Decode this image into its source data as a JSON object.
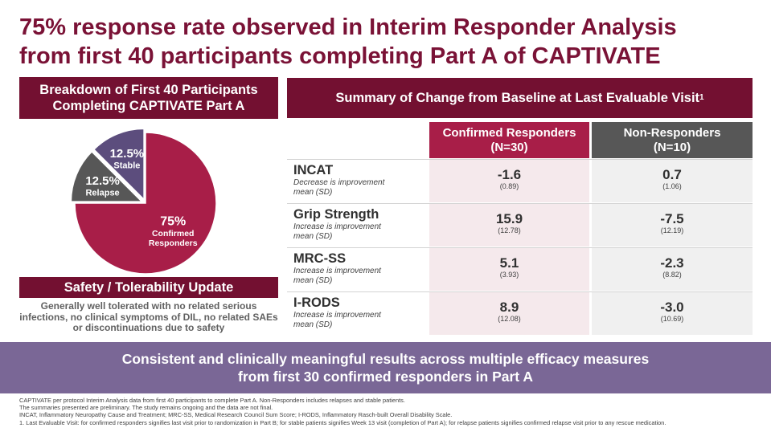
{
  "title": {
    "line1": "75% response rate observed in Interim Responder Analysis",
    "line2": "from first 40 participants completing Part A of CAPTIVATE"
  },
  "breakdown": {
    "header_line1": "Breakdown of First 40 Participants",
    "header_line2": "Completing CAPTIVATE Part A"
  },
  "safety": {
    "header": "Safety / Tolerability Update",
    "text": "Generally well tolerated with no related serious infections, no clinical symptoms of DIL, no related SAEs or discontinuations due to safety"
  },
  "summary": {
    "header": "Summary of Change from Baseline at Last Evaluable Visit",
    "header_sup": "1"
  },
  "colors": {
    "title": "#7a1236",
    "header_bg": "#731031",
    "confirmed": "#a81e48",
    "relapse": "#575757",
    "stable": "#5c4d7d",
    "banner": "#7a6796"
  },
  "chart_data": [
    {
      "type": "pie",
      "slices": [
        {
          "label_pct": "75%",
          "label_line1": "Confirmed",
          "label_line2": "Responders",
          "value": 75,
          "color": "#a81e48"
        },
        {
          "label_pct": "12.5%",
          "label_line1": "Relapse",
          "label_line2": "",
          "value": 12.5,
          "color": "#575757"
        },
        {
          "label_pct": "12.5%",
          "label_line1": "Stable",
          "label_line2": "",
          "value": 12.5,
          "color": "#5c4d7d"
        }
      ]
    },
    {
      "type": "table",
      "columns": [
        {
          "line1": "Confirmed Responders",
          "line2": "(N=30)"
        },
        {
          "line1": "Non-Responders",
          "line2": "(N=10)"
        }
      ],
      "rows": [
        {
          "metric": "INCAT",
          "desc1": "Decrease is improvement",
          "desc2": "mean (SD)",
          "responders_mean": "-1.6",
          "responders_sd": "(0.89)",
          "non_mean": "0.7",
          "non_sd": "(1.06)"
        },
        {
          "metric": "Grip Strength",
          "desc1": "Increase is improvement",
          "desc2": "mean (SD)",
          "responders_mean": "15.9",
          "responders_sd": "(12.78)",
          "non_mean": "-7.5",
          "non_sd": "(12.19)"
        },
        {
          "metric": "MRC-SS",
          "desc1": "Increase is improvement",
          "desc2": "mean (SD)",
          "responders_mean": "5.1",
          "responders_sd": "(3.93)",
          "non_mean": "-2.3",
          "non_sd": "(8.82)"
        },
        {
          "metric": "I-RODS",
          "desc1": "Increase is improvement",
          "desc2": "mean (SD)",
          "responders_mean": "8.9",
          "responders_sd": "(12.08)",
          "non_mean": "-3.0",
          "non_sd": "(10.69)"
        }
      ]
    }
  ],
  "banner": {
    "line1": "Consistent and clinically meaningful results across multiple efficacy measures",
    "line2": "from first 30 confirmed responders in Part A"
  },
  "footnotes": [
    "CAPTIVATE per protocol Interim Analysis data from first 40 participants to complete Part A. Non-Responders includes relapses and stable patients.",
    "The summaries presented are preliminary. The study remains ongoing and the data are not final.",
    "INCAT, Inflammatory Neuropathy Cause and Treatment; MRC-SS, Medical Research Council Sum Score; I-RODS, Inflammatory Rasch-built Overall Disability Scale.",
    "1. Last Evaluable Visit: for confirmed responders signifies last visit prior to randomization in Part B; for stable patients signifies Week 13 visit (completion of Part A); for relapse patients signifies confirmed relapse visit prior to any rescue medication."
  ]
}
